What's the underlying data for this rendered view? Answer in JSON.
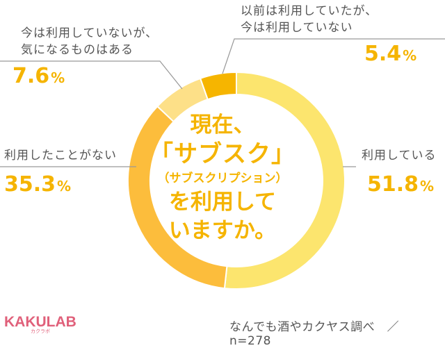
{
  "chart_data": {
    "type": "pie",
    "title": [
      "現在、",
      "「サブスク」",
      "（サブスクリプション）",
      "を利用して",
      "いますか。"
    ],
    "slices": [
      {
        "label": "利用している",
        "value": 51.8,
        "color": "#fce56e"
      },
      {
        "label": "利用したことがない",
        "value": 35.3,
        "color": "#fcbd3c"
      },
      {
        "label": "今は利用していないが、気になるものはある",
        "label_lines": [
          "今は利用していないが、",
          "気になるものはある"
        ],
        "value": 7.6,
        "color": "#fde088"
      },
      {
        "label": "以前は利用していたが、今は利用していない",
        "label_lines": [
          "以前は利用していたが、",
          "今は利用していない"
        ],
        "value": 5.4,
        "color": "#f6b500"
      }
    ],
    "labels_display": {
      "using": {
        "text": "利用している",
        "value": "51.8",
        "unit": "%"
      },
      "never": {
        "text": "利用したことがない",
        "value": "35.3",
        "unit": "%"
      },
      "interested_1": "今は利用していないが、",
      "interested_2": "気になるものはある",
      "interested_value": "7.6",
      "interested_unit": "%",
      "former_1": "以前は利用していたが、",
      "former_2": "今は利用していない",
      "former_value": "5.4",
      "former_unit": "%"
    }
  },
  "branding": {
    "logo": "KAKULAB",
    "logo_sub": "カクラボ",
    "source": "なんでも酒やカクヤス調べ　／ n=278"
  },
  "colors": {
    "accent": "#f5b400",
    "text": "#555555",
    "line": "#999999",
    "logo": "#e0607a"
  }
}
